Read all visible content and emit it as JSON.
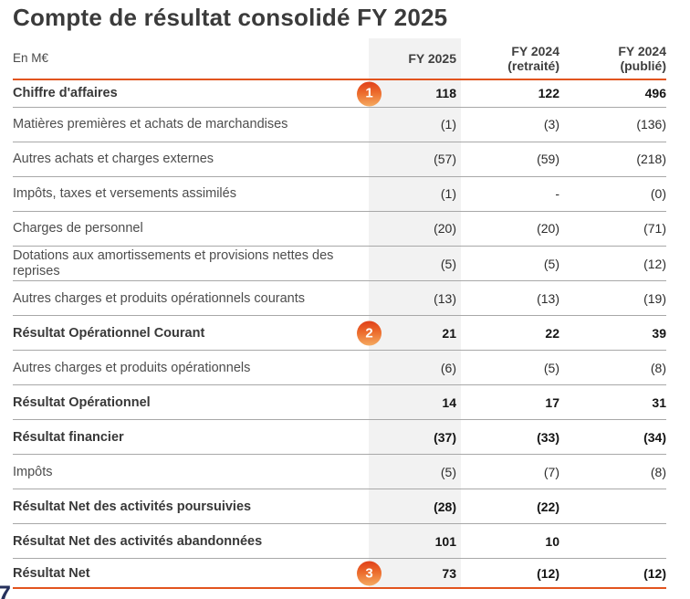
{
  "title": "Compte de résultat consolidé FY 2025",
  "page_number_partial": "7",
  "colors": {
    "accent_orange": "#e2541e",
    "badge_gradient_top": "#e2451c",
    "badge_gradient_bottom": "#f4a75e",
    "fy2025_band_gray": "#f2f2f2",
    "separator_gray": "#a8a8a8",
    "title_gray": "#3b3b3b",
    "page_number_navy": "#26315c"
  },
  "table": {
    "unit_label": "En M€",
    "columns": [
      "FY 2025",
      "FY 2024\n(retraité)",
      "FY 2024\n(publié)"
    ],
    "rows": [
      {
        "label": "Chiffre d'affaires",
        "bold": true,
        "badge": "1",
        "values": [
          "118",
          "122",
          "496"
        ]
      },
      {
        "label": "Matières premières et achats de marchandises",
        "bold": false,
        "badge": null,
        "values": [
          "(1)",
          "(3)",
          "(136)"
        ]
      },
      {
        "label": "Autres achats et charges externes",
        "bold": false,
        "badge": null,
        "values": [
          "(57)",
          "(59)",
          "(218)"
        ]
      },
      {
        "label": "Impôts, taxes et versements assimilés",
        "bold": false,
        "badge": null,
        "values": [
          "(1)",
          "-",
          "(0)"
        ]
      },
      {
        "label": "Charges de personnel",
        "bold": false,
        "badge": null,
        "values": [
          "(20)",
          "(20)",
          "(71)"
        ]
      },
      {
        "label": "Dotations aux amortissements et provisions nettes des reprises",
        "bold": false,
        "badge": null,
        "values": [
          "(5)",
          "(5)",
          "(12)"
        ]
      },
      {
        "label": "Autres charges et produits opérationnels courants",
        "bold": false,
        "badge": null,
        "values": [
          "(13)",
          "(13)",
          "(19)"
        ]
      },
      {
        "label": "Résultat Opérationnel Courant",
        "bold": true,
        "badge": "2",
        "values": [
          "21",
          "22",
          "39"
        ]
      },
      {
        "label": "Autres charges et produits opérationnels",
        "bold": false,
        "badge": null,
        "values": [
          "(6)",
          "(5)",
          "(8)"
        ]
      },
      {
        "label": "Résultat Opérationnel",
        "bold": true,
        "badge": null,
        "values": [
          "14",
          "17",
          "31"
        ]
      },
      {
        "label": "Résultat financier",
        "bold": true,
        "badge": null,
        "values": [
          "(37)",
          "(33)",
          "(34)"
        ]
      },
      {
        "label": "Impôts",
        "bold": false,
        "badge": null,
        "values": [
          "(5)",
          "(7)",
          "(8)"
        ]
      },
      {
        "label": "Résultat Net des activités poursuivies",
        "bold": true,
        "badge": null,
        "values": [
          "(28)",
          "(22)",
          ""
        ]
      },
      {
        "label": "Résultat Net des activités abandonnées",
        "bold": true,
        "badge": null,
        "values": [
          "101",
          "10",
          ""
        ]
      },
      {
        "label": "Résultat Net",
        "bold": true,
        "badge": "3",
        "values": [
          "73",
          "(12)",
          "(12)"
        ]
      }
    ]
  }
}
